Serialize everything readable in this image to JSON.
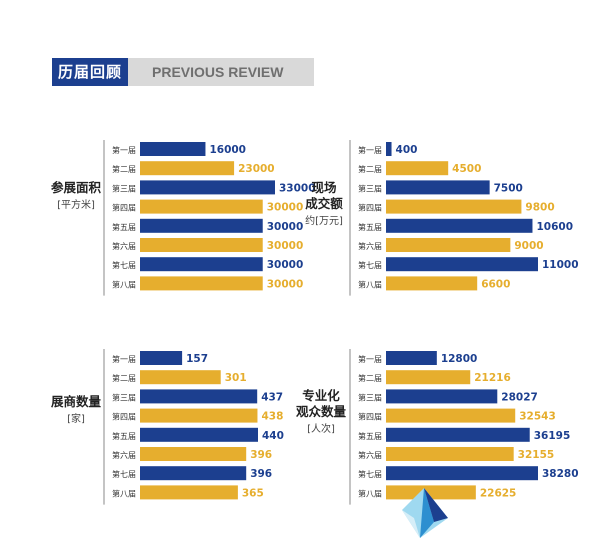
{
  "header": {
    "title_cn": "历届回顾",
    "title_en": "PREVIOUS REVIEW"
  },
  "colors": {
    "blue": "#1c3f8f",
    "gold": "#e6ae2e",
    "header_blue": "#1c3f8f",
    "header_gray": "#d9d9d9"
  },
  "panels": [
    {
      "title_lines": [
        "参展面积"
      ],
      "unit": "[平方米]"
    },
    {
      "title_lines": [
        "现场",
        "成交额"
      ],
      "unit": "约[万元]"
    },
    {
      "title_lines": [
        "展商数量"
      ],
      "unit": "[家]"
    },
    {
      "title_lines": [
        "专业化",
        "观众数量"
      ],
      "unit": "[人次]"
    }
  ],
  "chart_data": [
    {
      "type": "bar",
      "orientation": "horizontal",
      "title": "参展面积",
      "unit": "[平方米]",
      "categories": [
        "第一届",
        "第二届",
        "第三届",
        "第四届",
        "第五届",
        "第六届",
        "第七届",
        "第八届"
      ],
      "values": [
        16000,
        23000,
        33000,
        30000,
        30000,
        30000,
        30000,
        30000
      ],
      "bar_colors": [
        "blue",
        "gold",
        "blue",
        "gold",
        "blue",
        "gold",
        "blue",
        "gold"
      ]
    },
    {
      "type": "bar",
      "orientation": "horizontal",
      "title": "现场成交额",
      "unit": "约[万元]",
      "categories": [
        "第一届",
        "第二届",
        "第三届",
        "第四届",
        "第五届",
        "第六届",
        "第七届",
        "第八届"
      ],
      "values": [
        400,
        4500,
        7500,
        9800,
        10600,
        9000,
        11000,
        6600
      ],
      "bar_colors": [
        "blue",
        "gold",
        "blue",
        "gold",
        "blue",
        "gold",
        "blue",
        "gold"
      ]
    },
    {
      "type": "bar",
      "orientation": "horizontal",
      "title": "展商数量",
      "unit": "[家]",
      "categories": [
        "第一届",
        "第二届",
        "第三届",
        "第四届",
        "第五届",
        "第六届",
        "第七届",
        "第八届"
      ],
      "values": [
        157,
        301,
        437,
        438,
        440,
        396,
        396,
        365
      ],
      "bar_colors": [
        "blue",
        "gold",
        "blue",
        "gold",
        "blue",
        "gold",
        "blue",
        "gold"
      ]
    },
    {
      "type": "bar",
      "orientation": "horizontal",
      "title": "专业化观众数量",
      "unit": "[人次]",
      "categories": [
        "第一届",
        "第二届",
        "第三届",
        "第四届",
        "第五届",
        "第六届",
        "第七届",
        "第八届"
      ],
      "values": [
        12800,
        21216,
        28027,
        32543,
        36195,
        32155,
        38280,
        22625
      ],
      "bar_colors": [
        "blue",
        "gold",
        "blue",
        "gold",
        "blue",
        "gold",
        "blue",
        "gold"
      ]
    }
  ]
}
